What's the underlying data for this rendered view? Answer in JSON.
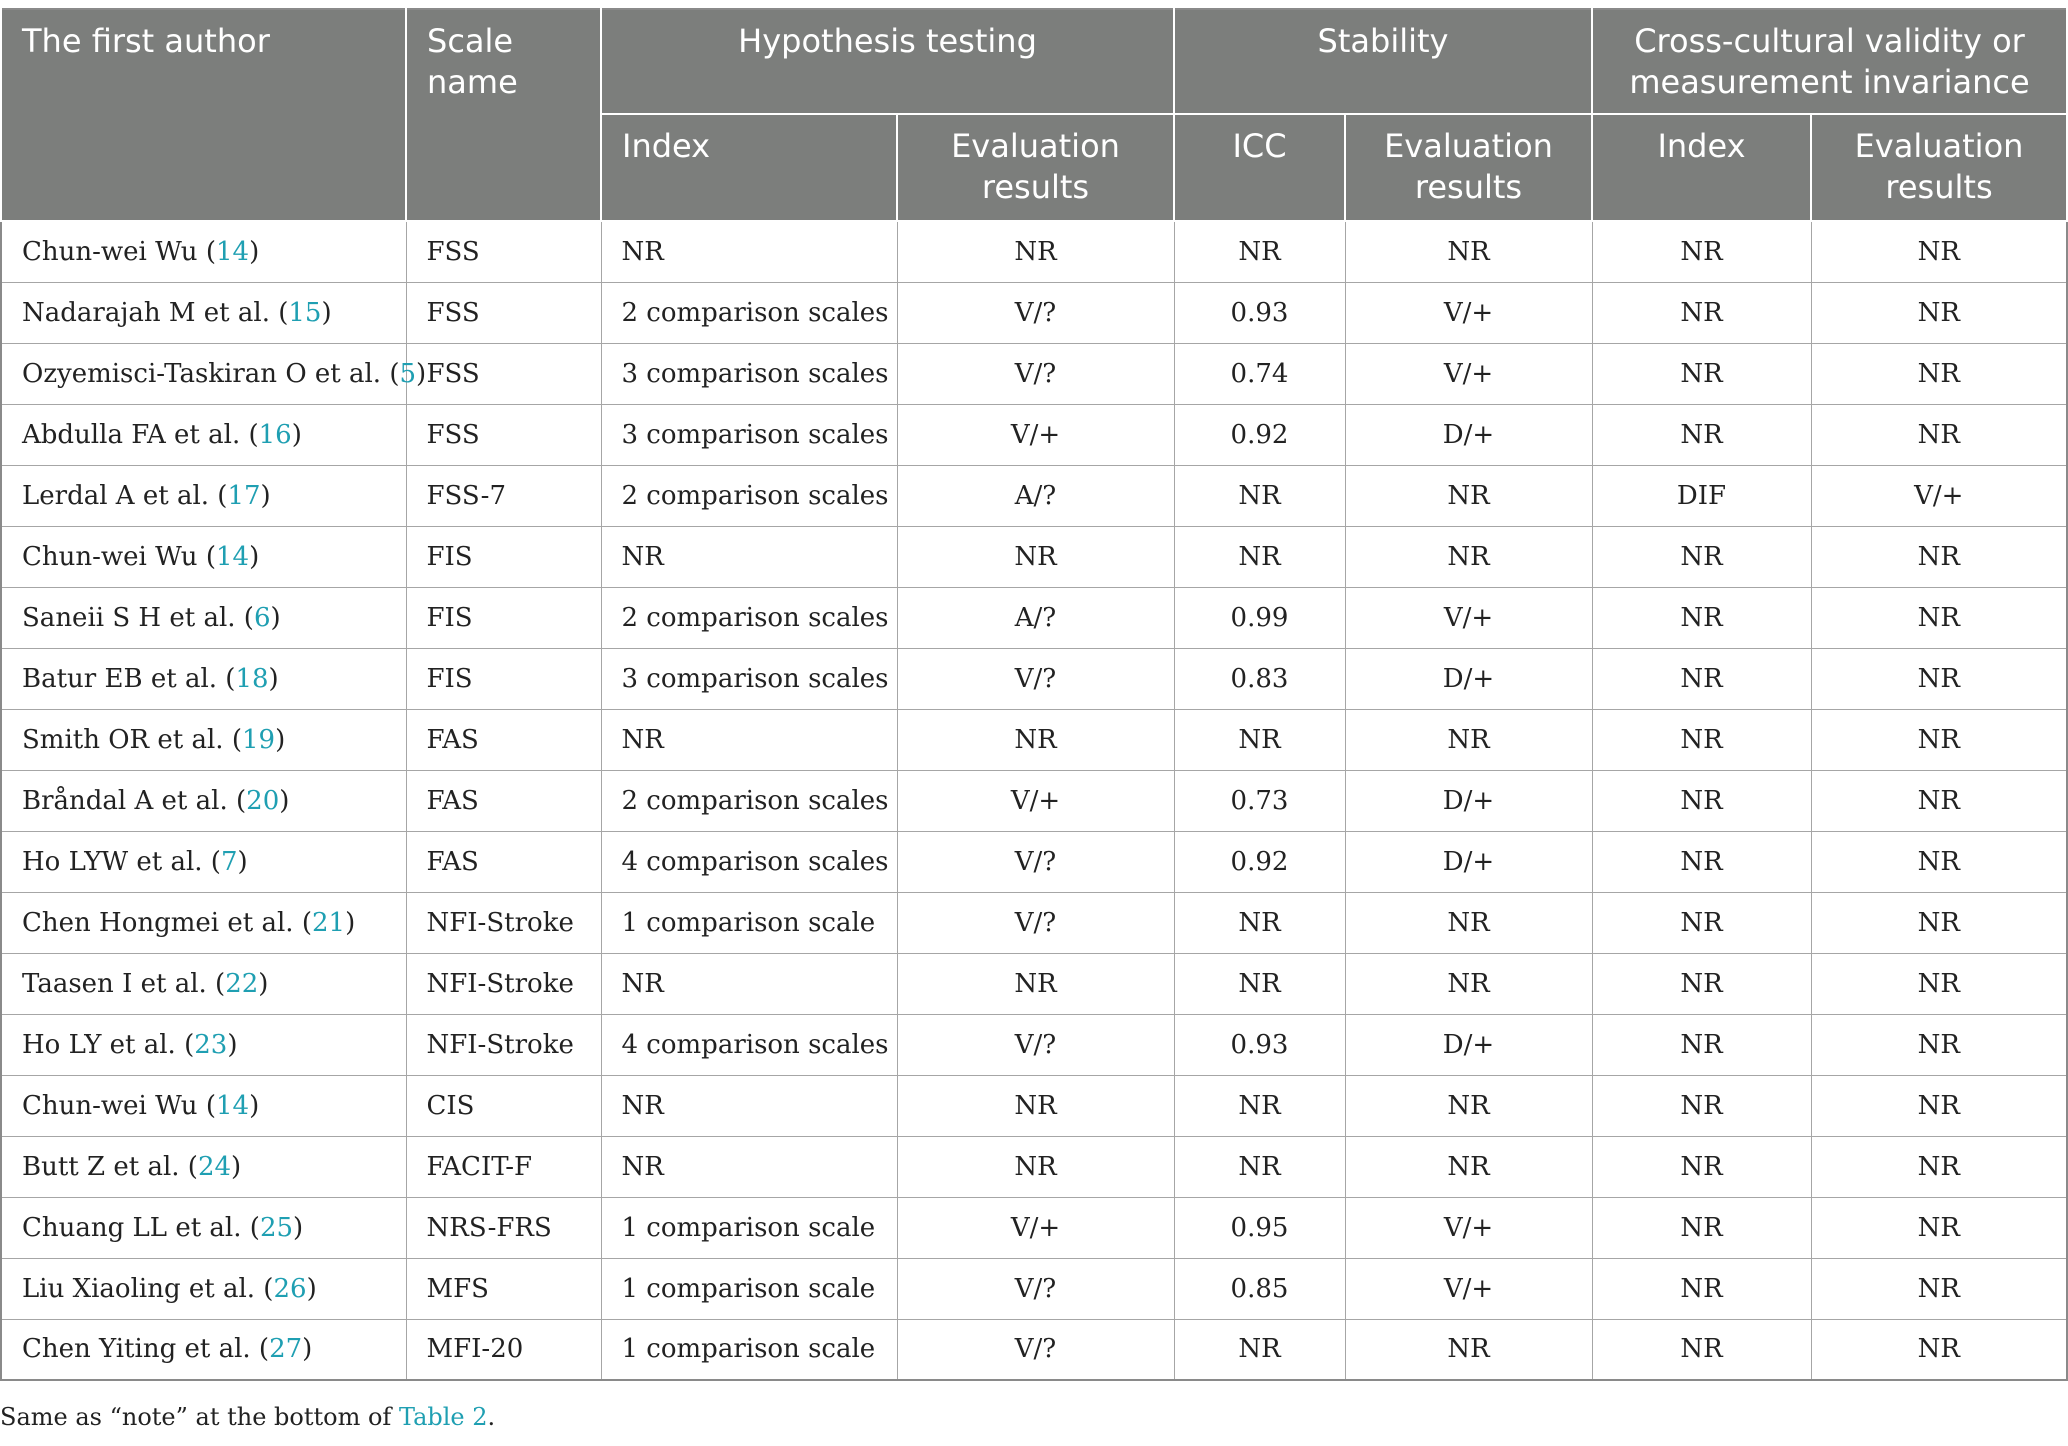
{
  "headers": {
    "first_author": "The first author",
    "scale_name": "Scale name",
    "hypothesis_testing": "Hypothesis testing",
    "stability": "Stability",
    "cross_cultural": "Cross-cultural validity or measurement invariance",
    "index": "Index",
    "evaluation_results": "Evaluation results",
    "icc": "ICC"
  },
  "rows": [
    {
      "author": "Chun-wei Wu",
      "ref": "14",
      "scale": "FSS",
      "ht_index": "NR",
      "ht_eval": "NR",
      "icc": "NR",
      "st_eval": "NR",
      "cc_index": "NR",
      "cc_eval": "NR"
    },
    {
      "author": "Nadarajah M et al.",
      "ref": "15",
      "scale": "FSS",
      "ht_index": "2 comparison scales",
      "ht_eval": "V/?",
      "icc": "0.93",
      "st_eval": "V/+",
      "cc_index": "NR",
      "cc_eval": "NR"
    },
    {
      "author": "Ozyemisci-Taskiran O et al.",
      "ref": "5",
      "scale": "FSS",
      "ht_index": "3 comparison scales",
      "ht_eval": "V/?",
      "icc": "0.74",
      "st_eval": "V/+",
      "cc_index": "NR",
      "cc_eval": "NR"
    },
    {
      "author": "Abdulla FA et al.",
      "ref": "16",
      "scale": "FSS",
      "ht_index": "3 comparison scales",
      "ht_eval": "V/+",
      "icc": "0.92",
      "st_eval": "D/+",
      "cc_index": "NR",
      "cc_eval": "NR"
    },
    {
      "author": "Lerdal A et al.",
      "ref": "17",
      "scale": "FSS-7",
      "ht_index": "2 comparison scales",
      "ht_eval": "A/?",
      "icc": "NR",
      "st_eval": "NR",
      "cc_index": "DIF",
      "cc_eval": "V/+"
    },
    {
      "author": "Chun-wei Wu",
      "ref": "14",
      "scale": "FIS",
      "ht_index": "NR",
      "ht_eval": "NR",
      "icc": "NR",
      "st_eval": "NR",
      "cc_index": "NR",
      "cc_eval": "NR"
    },
    {
      "author": "Saneii S H et al.",
      "ref": "6",
      "scale": "FIS",
      "ht_index": "2 comparison scales",
      "ht_eval": "A/?",
      "icc": "0.99",
      "st_eval": "V/+",
      "cc_index": "NR",
      "cc_eval": "NR"
    },
    {
      "author": "Batur EB et al.",
      "ref": "18",
      "scale": "FIS",
      "ht_index": "3 comparison scales",
      "ht_eval": "V/?",
      "icc": "0.83",
      "st_eval": "D/+",
      "cc_index": "NR",
      "cc_eval": "NR"
    },
    {
      "author": "Smith OR et al.",
      "ref": "19",
      "scale": "FAS",
      "ht_index": "NR",
      "ht_eval": "NR",
      "icc": "NR",
      "st_eval": "NR",
      "cc_index": "NR",
      "cc_eval": "NR"
    },
    {
      "author": "Bråndal A et al.",
      "ref": "20",
      "scale": "FAS",
      "ht_index": "2 comparison scales",
      "ht_eval": "V/+",
      "icc": "0.73",
      "st_eval": "D/+",
      "cc_index": "NR",
      "cc_eval": "NR"
    },
    {
      "author": "Ho LYW et al.",
      "ref": "7",
      "scale": "FAS",
      "ht_index": "4 comparison scales",
      "ht_eval": "V/?",
      "icc": "0.92",
      "st_eval": "D/+",
      "cc_index": "NR",
      "cc_eval": "NR"
    },
    {
      "author": "Chen Hongmei et al.",
      "ref": "21",
      "scale": "NFI-Stroke",
      "ht_index": "1 comparison scale",
      "ht_eval": "V/?",
      "icc": "NR",
      "st_eval": "NR",
      "cc_index": "NR",
      "cc_eval": "NR"
    },
    {
      "author": "Taasen I et al.",
      "ref": "22",
      "scale": "NFI-Stroke",
      "ht_index": "NR",
      "ht_eval": "NR",
      "icc": "NR",
      "st_eval": "NR",
      "cc_index": "NR",
      "cc_eval": "NR"
    },
    {
      "author": "Ho LY et al.",
      "ref": "23",
      "scale": "NFI-Stroke",
      "ht_index": "4 comparison scales",
      "ht_eval": "V/?",
      "icc": "0.93",
      "st_eval": "D/+",
      "cc_index": "NR",
      "cc_eval": "NR"
    },
    {
      "author": "Chun-wei Wu",
      "ref": "14",
      "scale": "CIS",
      "ht_index": "NR",
      "ht_eval": "NR",
      "icc": "NR",
      "st_eval": "NR",
      "cc_index": "NR",
      "cc_eval": "NR"
    },
    {
      "author": "Butt Z et al.",
      "ref": "24",
      "scale": "FACIT-F",
      "ht_index": "NR",
      "ht_eval": "NR",
      "icc": "NR",
      "st_eval": "NR",
      "cc_index": "NR",
      "cc_eval": "NR"
    },
    {
      "author": "Chuang LL et al.",
      "ref": "25",
      "scale": "NRS-FRS",
      "ht_index": "1 comparison scale",
      "ht_eval": "V/+",
      "icc": "0.95",
      "st_eval": "V/+",
      "cc_index": "NR",
      "cc_eval": "NR"
    },
    {
      "author": "Liu Xiaoling et al.",
      "ref": "26",
      "scale": "MFS",
      "ht_index": "1 comparison scale",
      "ht_eval": "V/?",
      "icc": "0.85",
      "st_eval": "V/+",
      "cc_index": "NR",
      "cc_eval": "NR"
    },
    {
      "author": "Chen Yiting et al.",
      "ref": "27",
      "scale": "MFI-20",
      "ht_index": "1 comparison scale",
      "ht_eval": "V/?",
      "icc": "NR",
      "st_eval": "NR",
      "cc_index": "NR",
      "cc_eval": "NR"
    }
  ],
  "note": {
    "prefix": "Same as “note” at the bottom of ",
    "link": "Table 2",
    "suffix": "."
  }
}
